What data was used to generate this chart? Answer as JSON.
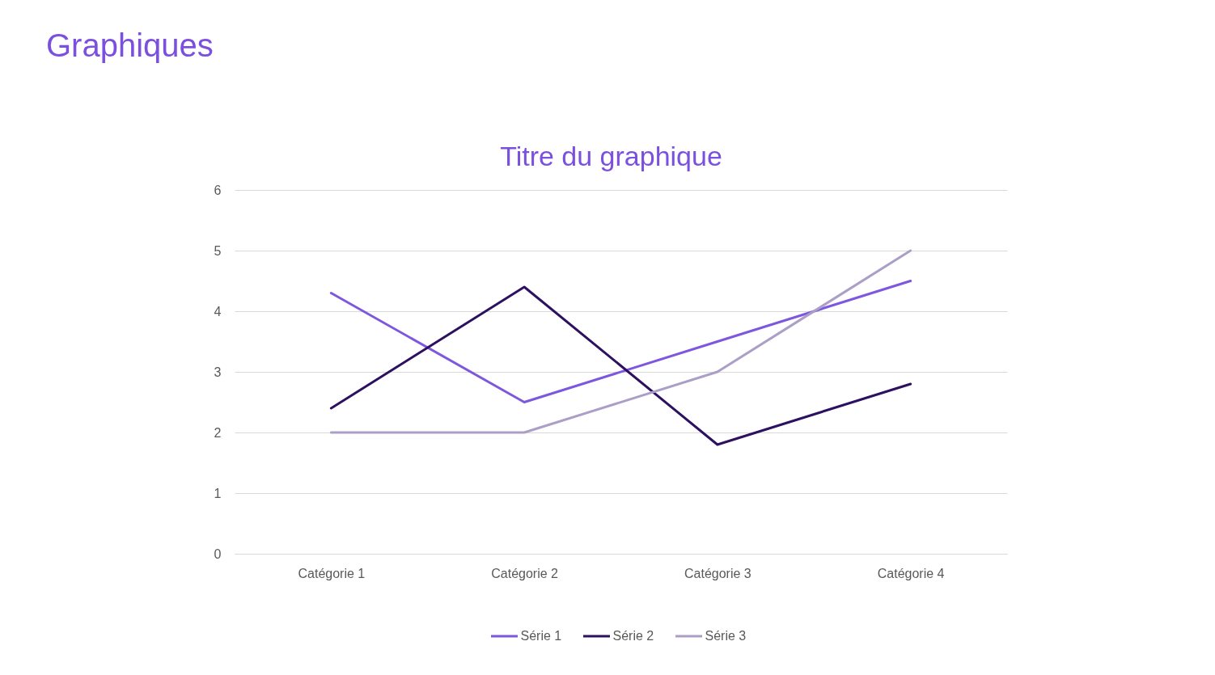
{
  "chart_data": {
    "type": "line",
    "title": "Graphiques",
    "subtitle": "Titre du graphique",
    "categories": [
      "Catégorie 1",
      "Catégorie 2",
      "Catégorie 3",
      "Catégorie 4"
    ],
    "series": [
      {
        "name": "Série 1",
        "color": "#7e57df",
        "values": [
          4.3,
          2.5,
          3.5,
          4.5
        ]
      },
      {
        "name": "Série 2",
        "color": "#2d1060",
        "values": [
          2.4,
          4.4,
          1.8,
          2.8
        ]
      },
      {
        "name": "Série 3",
        "color": "#ab9fc8",
        "values": [
          2,
          2,
          3,
          5
        ]
      }
    ],
    "ylim": [
      0,
      6
    ],
    "yticks": [
      0,
      1,
      2,
      3,
      4,
      5,
      6
    ],
    "grid": "y",
    "legend": "bottom",
    "line_style": "solid"
  }
}
